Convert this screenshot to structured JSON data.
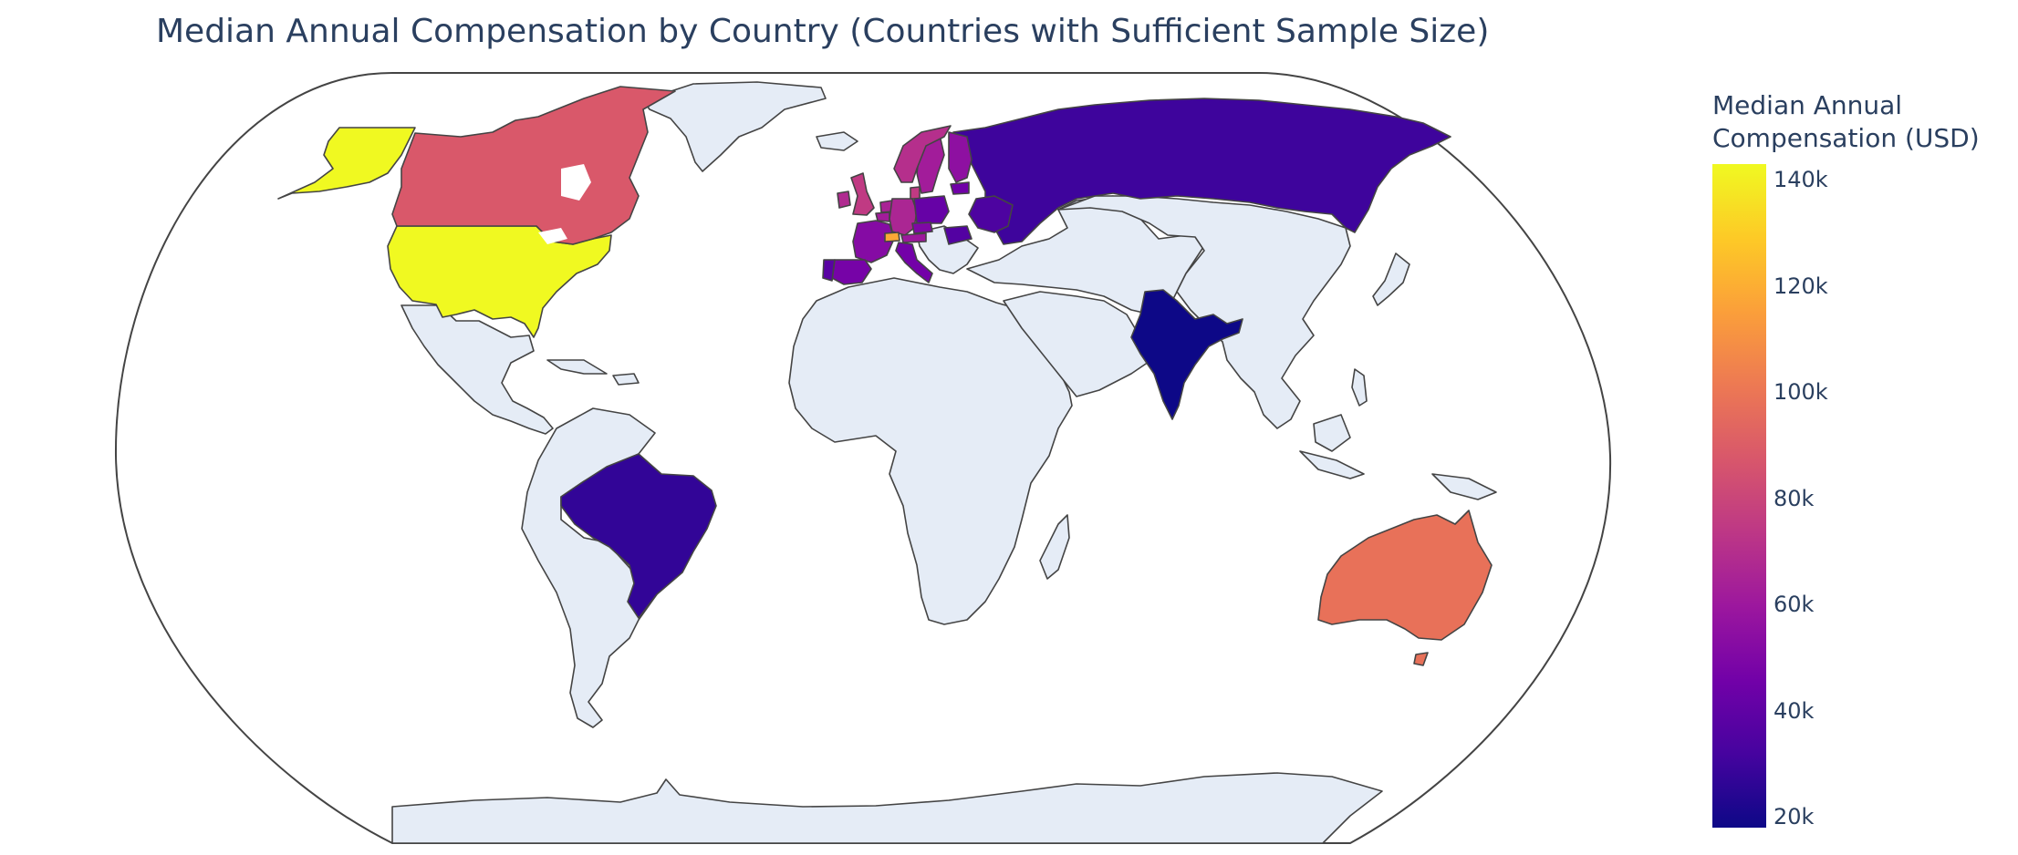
{
  "chart_data": {
    "type": "choropleth",
    "title": "Median Annual Compensation by Country (Countries with Sufficient Sample Size)",
    "projection": "natural earth",
    "colorscale": "Plasma",
    "colorbar": {
      "title": "Median Annual Compensation (USD)",
      "title_lines": [
        "Median Annual",
        "Compensation (USD)"
      ],
      "range": [
        18000,
        143000
      ],
      "ticks": [
        {
          "value": 140000,
          "label": "140k"
        },
        {
          "value": 120000,
          "label": "120k"
        },
        {
          "value": 100000,
          "label": "100k"
        },
        {
          "value": 80000,
          "label": "80k"
        },
        {
          "value": 60000,
          "label": "60k"
        },
        {
          "value": 40000,
          "label": "40k"
        },
        {
          "value": 20000,
          "label": "20k"
        }
      ]
    },
    "colors": {
      "land": "#e5ecf6",
      "border": "#444444",
      "text": "#2a3f5f",
      "plasma": [
        "#0d0887",
        "#46039f",
        "#7201a8",
        "#9c179e",
        "#bd3786",
        "#d8576b",
        "#ed7953",
        "#fb9f3a",
        "#fdca26",
        "#f0f921"
      ]
    },
    "countries": [
      {
        "name": "United States",
        "value": 143000
      },
      {
        "name": "Canada",
        "value": 88000
      },
      {
        "name": "Australia",
        "value": 98000
      },
      {
        "name": "Switzerland",
        "value": 118000
      },
      {
        "name": "United Kingdom",
        "value": 75000
      },
      {
        "name": "Norway",
        "value": 70000
      },
      {
        "name": "Denmark",
        "value": 75000
      },
      {
        "name": "Sweden",
        "value": 62000
      },
      {
        "name": "Netherlands",
        "value": 65000
      },
      {
        "name": "Germany",
        "value": 66000
      },
      {
        "name": "Austria",
        "value": 60000
      },
      {
        "name": "Belgium",
        "value": 62000
      },
      {
        "name": "Ireland",
        "value": 68000
      },
      {
        "name": "France",
        "value": 52000
      },
      {
        "name": "Spain",
        "value": 47000
      },
      {
        "name": "Portugal",
        "value": 38000
      },
      {
        "name": "Italy",
        "value": 46000
      },
      {
        "name": "Czechia",
        "value": 50000
      },
      {
        "name": "Poland",
        "value": 42000
      },
      {
        "name": "Finland",
        "value": 55000
      },
      {
        "name": "Estonia",
        "value": 45000
      },
      {
        "name": "Romania",
        "value": 36000
      },
      {
        "name": "Ukraine",
        "value": 34000
      },
      {
        "name": "Russia",
        "value": 30000
      },
      {
        "name": "Brazil",
        "value": 27000
      },
      {
        "name": "India",
        "value": 18000
      }
    ]
  }
}
